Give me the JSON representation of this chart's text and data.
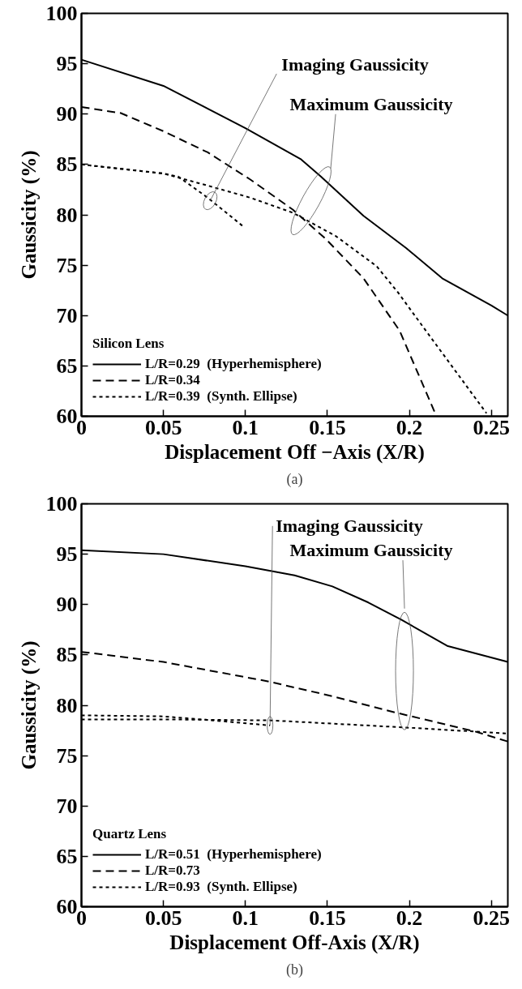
{
  "chart_data": [
    {
      "type": "line",
      "xlabel": "Displacement Off −Axis (X/R)",
      "ylabel": "Gaussicity (%)",
      "legend_title": "Silicon Lens",
      "xlim": [
        0,
        0.26
      ],
      "ylim": [
        60,
        100
      ],
      "xticks": [
        0,
        0.05,
        0.1,
        0.15,
        0.2,
        0.25
      ],
      "yticks": [
        60,
        65,
        70,
        75,
        80,
        85,
        90,
        95,
        100
      ],
      "grid": false,
      "legend": "bottom left",
      "annotations": [
        {
          "text": "Imaging Gaussicity",
          "x": 0.0785,
          "y": 81.4
        },
        "Maximum Gaussicity",
        "(a)"
      ],
      "series": [
        {
          "name": "L/R=0.29  (Hyperhemisphere)",
          "color": "#000000",
          "line_style": "solid",
          "x": [
            0,
            0.05,
            0.1,
            0.134,
            0.146,
            0.172,
            0.198,
            0.22,
            0.25,
            0.26
          ],
          "values": [
            95.4,
            92.8,
            88.6,
            85.5,
            83.8,
            79.9,
            76.7,
            73.7,
            71.0,
            70.0
          ]
        },
        {
          "name": "L/R=0.34",
          "color": "#000000",
          "line_style": "dashed",
          "x": [
            0,
            0.024,
            0.05,
            0.077,
            0.103,
            0.129,
            0.149,
            0.172,
            0.194,
            0.2165
          ],
          "values": [
            90.7,
            90.1,
            88.3,
            86.2,
            83.5,
            80.5,
            77.6,
            73.7,
            68.5,
            60.0
          ]
        },
        {
          "name": "L/R=0.39  (Synth. Ellipse)",
          "color": "#000000",
          "line_style": "dotted",
          "x": [
            0,
            0.05,
            0.077,
            0.103,
            0.129,
            0.155,
            0.18,
            0.193,
            0.21,
            0.247
          ],
          "values": [
            85.0,
            84.1,
            82.9,
            81.7,
            80.2,
            77.9,
            74.9,
            72.3,
            68.5,
            60.3
          ]
        },
        {
          "color": "#000000",
          "line_style": "dotted",
          "x": [
            0,
            0.05,
            0.059,
            0.077,
            0.099
          ],
          "values": [
            85.0,
            84.1,
            83.8,
            81.7,
            78.8
          ]
        }
      ]
    },
    {
      "type": "line",
      "xlabel": "Displacement Off-Axis (X/R)",
      "ylabel": "Gaussicity (%)",
      "legend_title": "Quartz Lens",
      "xlim": [
        0,
        0.26
      ],
      "ylim": [
        60,
        100
      ],
      "xticks": [
        0,
        0.05,
        0.1,
        0.15,
        0.2,
        0.25
      ],
      "yticks": [
        60,
        65,
        70,
        75,
        80,
        85,
        90,
        95,
        100
      ],
      "grid": false,
      "legend": "bottom left",
      "annotations": [
        {
          "text": "Imaging Gaussicity",
          "x": 0.115,
          "y": 78.0
        },
        "Maximum Gaussicity",
        "(b)"
      ],
      "series": [
        {
          "name": "L/R=0.51  (Hyperhemisphere)",
          "color": "#000000",
          "line_style": "solid",
          "x": [
            0,
            0.05,
            0.1,
            0.13,
            0.153,
            0.175,
            0.195,
            0.223,
            0.26
          ],
          "values": [
            95.4,
            95.0,
            93.8,
            92.9,
            91.8,
            90.2,
            88.5,
            85.9,
            84.3
          ]
        },
        {
          "name": "L/R=0.73",
          "color": "#000000",
          "line_style": "dashed",
          "x": [
            0,
            0.05,
            0.113,
            0.153,
            0.191,
            0.24,
            0.26
          ],
          "values": [
            85.3,
            84.3,
            82.4,
            80.9,
            79.3,
            77.4,
            76.4
          ]
        },
        {
          "name": "L/R=0.93  (Synth. Ellipse)",
          "color": "#000000",
          "line_style": "dotted",
          "x": [
            0,
            0.05,
            0.1155,
            0.197,
            0.26
          ],
          "values": [
            78.6,
            78.6,
            78.5,
            77.8,
            77.2
          ]
        },
        {
          "color": "#000000",
          "line_style": "dotted",
          "x": [
            0,
            0.05,
            0.08,
            0.115
          ],
          "values": [
            79.0,
            78.9,
            78.5,
            78.0
          ]
        }
      ]
    }
  ]
}
